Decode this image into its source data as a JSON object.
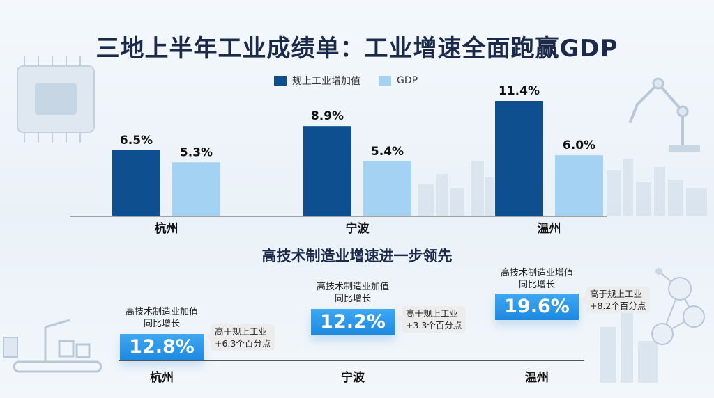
{
  "page": {
    "title": "三地上半年工业成绩单：工业增速全面跑赢GDP",
    "subtitle": "高技术制造业增速进一步领先"
  },
  "chart_data": {
    "type": "bar",
    "categories": [
      "杭州",
      "宁波",
      "温州"
    ],
    "series": [
      {
        "name": "规上工业增加值",
        "values": [
          6.5,
          8.9,
          11.4
        ],
        "labels": [
          "6.5%",
          "8.9%",
          "11.4%"
        ],
        "color": "#0d4f8f"
      },
      {
        "name": "GDP",
        "values": [
          5.3,
          5.4,
          6.0
        ],
        "labels": [
          "5.3%",
          "5.4%",
          "6.0%"
        ],
        "color": "#a4d2f3"
      }
    ],
    "ylim": [
      0,
      12.0
    ],
    "grid": false,
    "legend": "top-center"
  },
  "high_tech": {
    "items": [
      {
        "city": "杭州",
        "label_line1": "高技术制造业加值",
        "label_line2": "同比增长",
        "value": "12.8%",
        "note_line1": "高于规上工业",
        "note_line2": "+6.3个百分点"
      },
      {
        "city": "宁波",
        "label_line1": "高技术制造业加值",
        "label_line2": "同比增长",
        "value": "12.2%",
        "note_line1": "高于规上工业",
        "note_line2": "+3.3个百分点"
      },
      {
        "city": "温州",
        "label_line1": "高技术制造业增值",
        "label_line2": "同比增长",
        "value": "19.6%",
        "note_line1": "高于规上工业",
        "note_line2": "+8.2个百分点"
      }
    ]
  },
  "colors": {
    "primary": "#0d4f8f",
    "secondary": "#a4d2f3",
    "accent": "#1e88e0"
  },
  "icons": [
    "chip-icon",
    "robot-arm-icon",
    "city-skyline-icon",
    "conveyor-icon",
    "network-icon"
  ]
}
